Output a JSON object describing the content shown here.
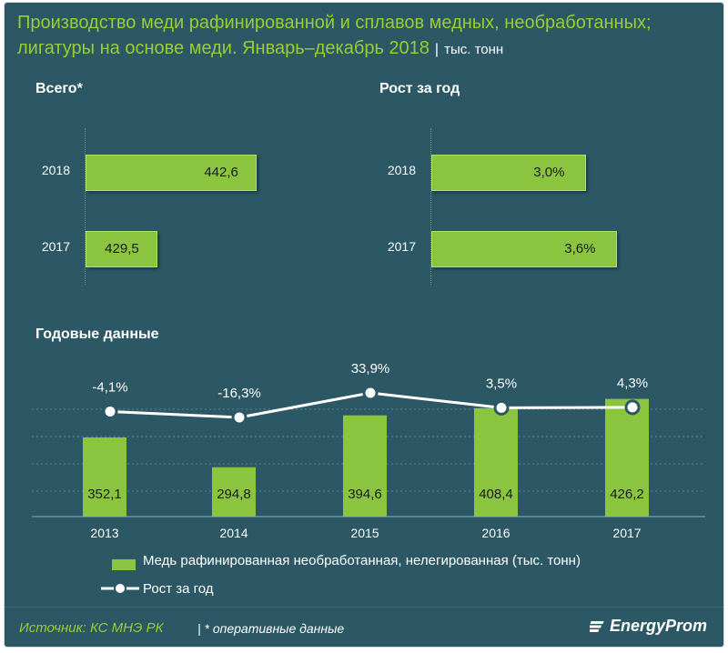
{
  "title": {
    "line1": "Производство меди рафинированной и сплавов медных, необработанных;",
    "line2": "лигатуры на основе меди. Январь–декабрь 2018",
    "separator": "|",
    "unit": "тыс. тонн"
  },
  "colors": {
    "background": "#2b5864",
    "bar": "#8bc53f",
    "accent": "#9acd32",
    "line": "#ffffff"
  },
  "chart_data": [
    {
      "type": "bar",
      "orientation": "horizontal",
      "title": "Всего*",
      "categories": [
        "2018",
        "2017"
      ],
      "values": [
        442.6,
        429.5
      ],
      "labels": [
        "442,6",
        "429,5"
      ],
      "xlim": [
        420,
        450
      ]
    },
    {
      "type": "bar",
      "orientation": "horizontal",
      "title": "Рост за год",
      "categories": [
        "2018",
        "2017"
      ],
      "values": [
        3.0,
        3.6
      ],
      "labels": [
        "3,0%",
        "3,6%"
      ],
      "xlim": [
        0,
        4
      ]
    },
    {
      "type": "bar+line",
      "title": "Годовые данные",
      "categories": [
        "2013",
        "2014",
        "2015",
        "2016",
        "2017"
      ],
      "series": [
        {
          "name": "Медь рафинированная необработанная, нелегированная (тыс. тонн)",
          "type": "bar",
          "values": [
            352.1,
            294.8,
            394.6,
            408.4,
            426.2
          ],
          "labels": [
            "352,1",
            "294,8",
            "394,6",
            "408,4",
            "426,2"
          ]
        },
        {
          "name": "Рост за год",
          "type": "line",
          "values": [
            -4.1,
            -16.3,
            33.9,
            3.5,
            4.3
          ],
          "labels": [
            "-4,1%",
            "-16,3%",
            "33,9%",
            "3,5%",
            "4,3%"
          ]
        }
      ]
    }
  ],
  "footer": {
    "source": "Источник: КС МНЭ РК",
    "separator": "|",
    "note": "* оперативные данные",
    "brand": "EnergyProm"
  }
}
